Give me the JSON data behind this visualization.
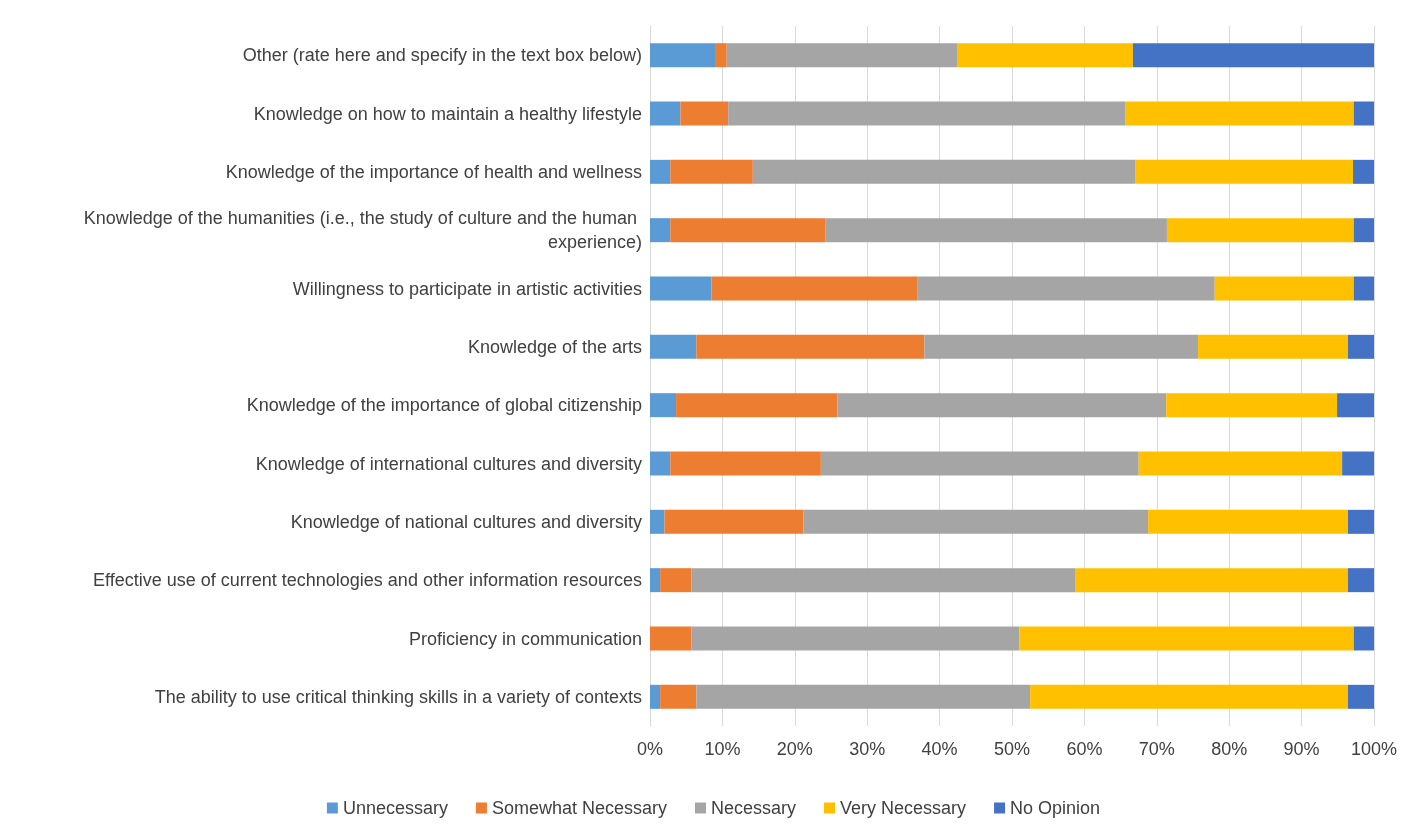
{
  "chart_data": {
    "type": "bar",
    "orientation": "horizontal",
    "stacked": true,
    "categories": [
      "Other (rate here and specify in the text box below)",
      "Knowledge on how to maintain a healthy lifestyle",
      "Knowledge of the importance of health and wellness",
      "Knowledge of the humanities (i.e., the study of culture and the human experience)",
      "Willingness to participate in artistic activities",
      "Knowledge of the arts",
      "Knowledge of the importance of global citizenship",
      "Knowledge of international cultures and diversity",
      "Knowledge of national cultures and diversity",
      "Effective use of current technologies and other information resources",
      "Proficiency in communication",
      "The ability to use critical thinking skills in a variety of contexts"
    ],
    "series": [
      {
        "name": "Unnecessary",
        "color": "#5b9bd5",
        "values": [
          9.1,
          4.2,
          2.8,
          2.8,
          8.5,
          6.4,
          3.6,
          2.8,
          2.0,
          1.4,
          0,
          1.4
        ]
      },
      {
        "name": "Somewhat Necessary",
        "color": "#ed7d31",
        "values": [
          1.5,
          6.6,
          11.4,
          21.4,
          28.4,
          31.5,
          22.3,
          20.8,
          19.2,
          4.3,
          5.7,
          5.0
        ]
      },
      {
        "name": "Necessary",
        "color": "#a5a5a5",
        "values": [
          31.9,
          54.9,
          52.8,
          47.2,
          41.1,
          37.8,
          45.4,
          43.9,
          47.6,
          53.1,
          45.3,
          46.1
        ]
      },
      {
        "name": "Very Necessary",
        "color": "#ffc000",
        "values": [
          24.2,
          31.5,
          30.1,
          25.8,
          19.2,
          20.7,
          23.6,
          28.1,
          27.6,
          37.6,
          46.2,
          43.9
        ]
      },
      {
        "name": "No Opinion",
        "color": "#4472c4",
        "values": [
          33.3,
          2.8,
          2.9,
          2.8,
          2.8,
          3.6,
          5.1,
          4.4,
          3.6,
          3.6,
          2.8,
          3.6
        ]
      }
    ],
    "xlim": [
      0,
      100
    ],
    "xticks": [
      {
        "value": 0,
        "label": "0%"
      },
      {
        "value": 10,
        "label": "10%"
      },
      {
        "value": 20,
        "label": "20%"
      },
      {
        "value": 30,
        "label": "30%"
      },
      {
        "value": 40,
        "label": "40%"
      },
      {
        "value": 50,
        "label": "50%"
      },
      {
        "value": 60,
        "label": "60%"
      },
      {
        "value": 70,
        "label": "70%"
      },
      {
        "value": 80,
        "label": "80%"
      },
      {
        "value": 90,
        "label": "90%"
      },
      {
        "value": 100,
        "label": "100%"
      }
    ],
    "grid": "x",
    "legend": "bottom"
  }
}
